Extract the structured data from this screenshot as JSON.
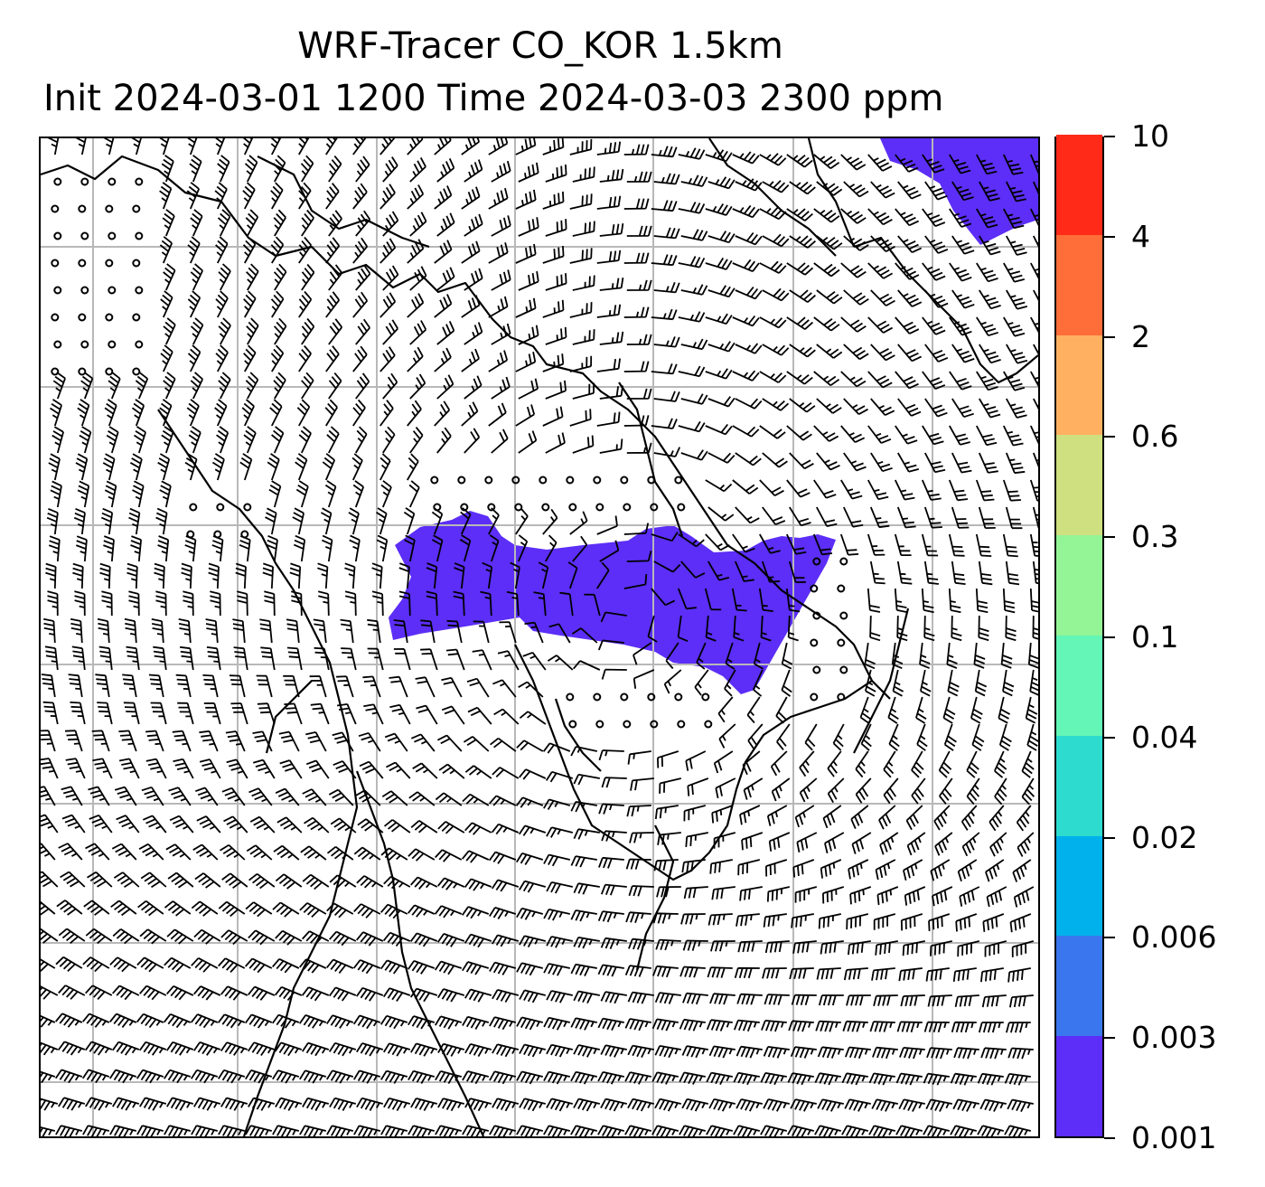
{
  "header": {
    "title_line1": "WRF-Tracer CO_KOR 1.5km",
    "title_line2": "Init 2024-03-01 1200 Time 2024-03-03 2300 ppm"
  },
  "colorbar": {
    "levels": [
      {
        "label": "0.001",
        "color": "#5c2ef7"
      },
      {
        "label": "0.003",
        "color": "#3a77ee"
      },
      {
        "label": "0.006",
        "color": "#00b1eb"
      },
      {
        "label": "0.02",
        "color": "#2ddbcf"
      },
      {
        "label": "0.04",
        "color": "#63f6b6"
      },
      {
        "label": "0.1",
        "color": "#93f595"
      },
      {
        "label": "0.3",
        "color": "#cee07f"
      },
      {
        "label": "0.6",
        "color": "#ffb061"
      },
      {
        "label": "2",
        "color": "#ff6d38"
      },
      {
        "label": "4",
        "color": "#ff2a18"
      },
      {
        "label": "10",
        "color": null
      }
    ]
  },
  "map": {
    "tracer_color": "#5c2ef7",
    "gridline_color": "#b8b8b8",
    "features": [
      "coastline",
      "wind-barbs",
      "calm-circles",
      "tracer-shading",
      "lat-lon-gridlines"
    ]
  }
}
